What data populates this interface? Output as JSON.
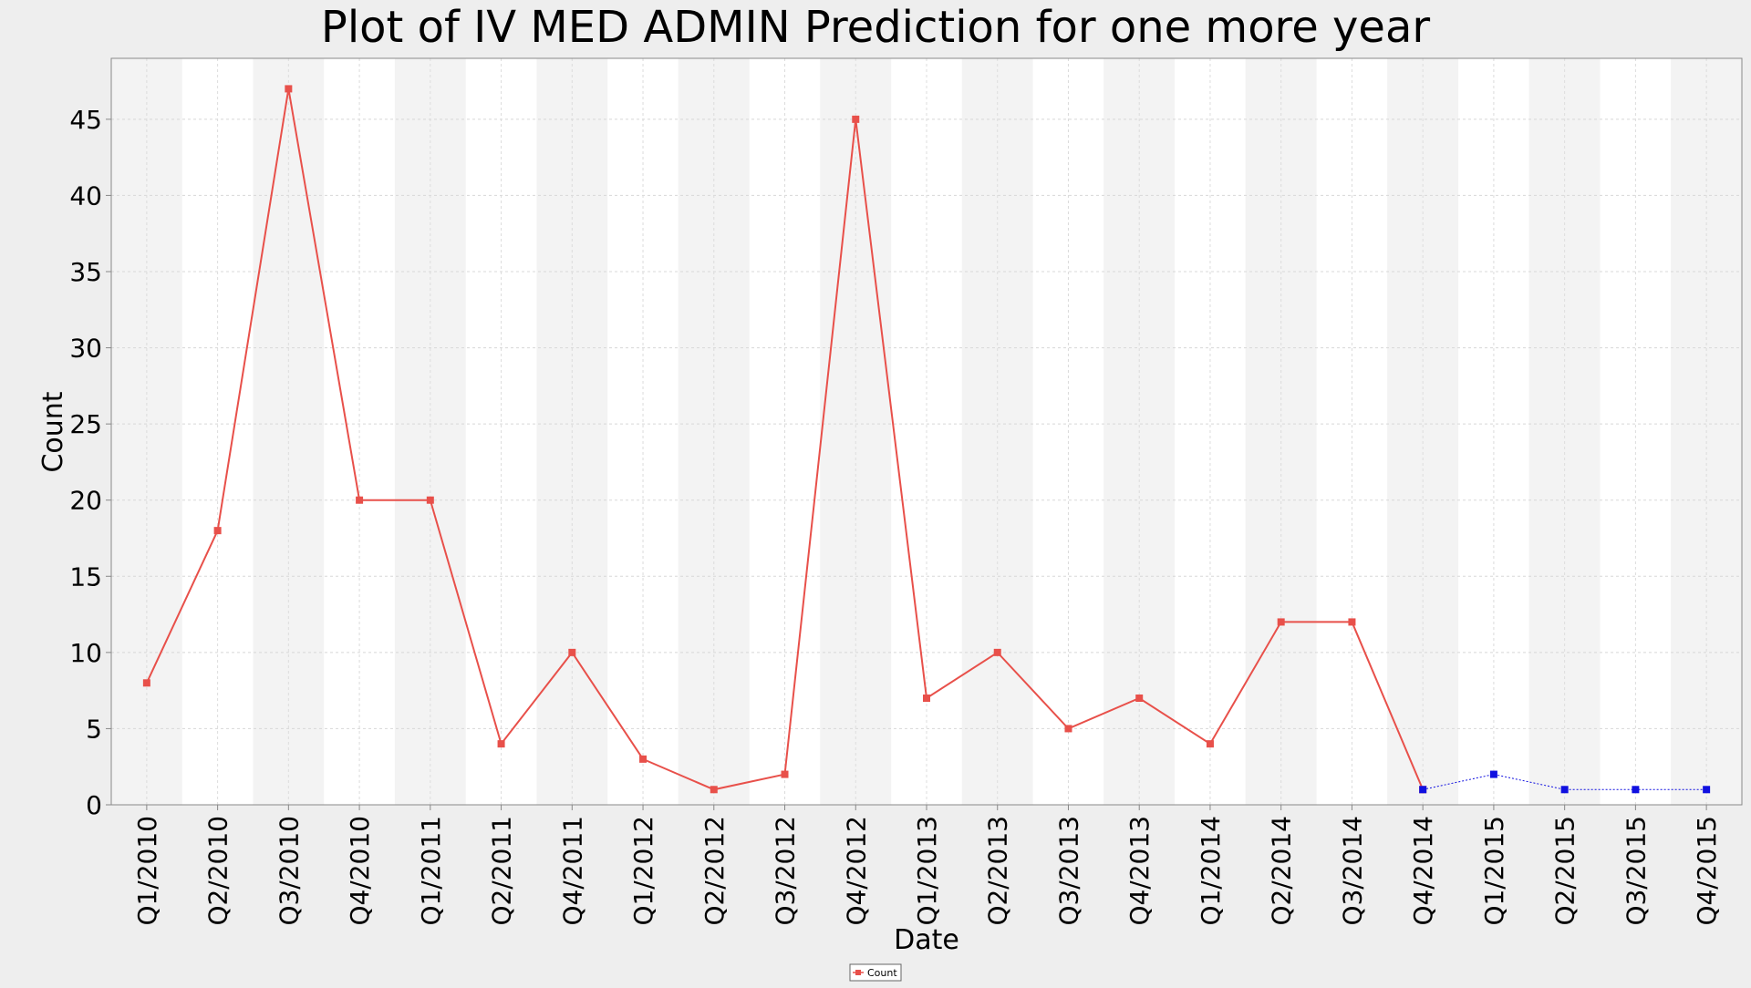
{
  "chart_data": {
    "type": "line",
    "title": "Plot of IV MED ADMIN Prediction for one more year",
    "xlabel": "Date",
    "ylabel": "Count",
    "ylim": [
      0,
      49
    ],
    "yticks": [
      0,
      5,
      10,
      15,
      20,
      25,
      30,
      35,
      40,
      45
    ],
    "grid": true,
    "legend_position": "bottom-center",
    "categories": [
      "Q1/2010",
      "Q2/2010",
      "Q3/2010",
      "Q4/2010",
      "Q1/2011",
      "Q2/2011",
      "Q4/2011",
      "Q1/2012",
      "Q2/2012",
      "Q3/2012",
      "Q4/2012",
      "Q1/2013",
      "Q2/2013",
      "Q3/2013",
      "Q4/2013",
      "Q1/2014",
      "Q2/2014",
      "Q3/2014",
      "Q4/2014",
      "Q1/2015",
      "Q2/2015",
      "Q3/2015",
      "Q4/2015"
    ],
    "series": [
      {
        "name": "Count",
        "color": "#e8504a",
        "values": [
          8,
          18,
          47,
          20,
          20,
          4,
          10,
          3,
          1,
          2,
          45,
          7,
          10,
          5,
          7,
          4,
          12,
          12,
          1,
          null,
          null,
          null,
          null
        ]
      },
      {
        "color": "#1010e0",
        "values": [
          null,
          null,
          null,
          null,
          null,
          null,
          null,
          null,
          null,
          null,
          null,
          null,
          null,
          null,
          null,
          null,
          null,
          null,
          1,
          2,
          1,
          1,
          1
        ]
      }
    ]
  }
}
